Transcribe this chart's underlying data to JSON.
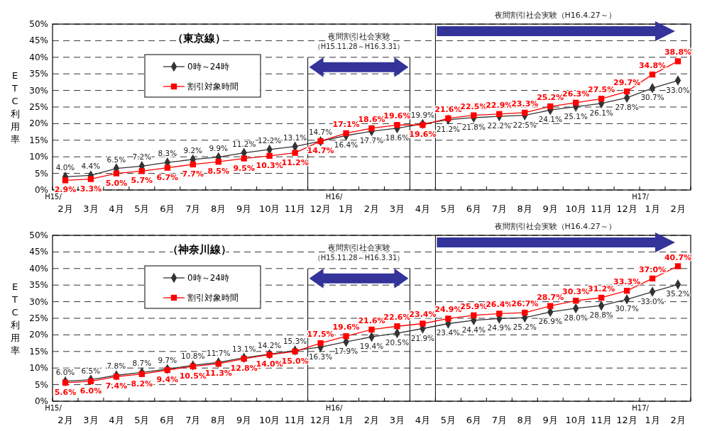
{
  "chart_data": [
    {
      "type": "line",
      "title": "（東京線）",
      "ylabel": "ETC利用率",
      "categories": [
        "H15/\n2月",
        "3月",
        "4月",
        "5月",
        "6月",
        "7月",
        "8月",
        "9月",
        "10月",
        "11月",
        "12月",
        "H16/\n1月",
        "2月",
        "3月",
        "4月",
        "5月",
        "6月",
        "7月",
        "8月",
        "9月",
        "10月",
        "11月",
        "12月",
        "H17/\n1月",
        "2月"
      ],
      "series": [
        {
          "name": "0時～24時",
          "color": "#333333",
          "marker": "diamond",
          "values": [
            4.0,
            4.4,
            6.5,
            7.2,
            8.3,
            9.2,
            9.9,
            11.2,
            12.2,
            13.1,
            14.7,
            16.4,
            17.7,
            18.6,
            19.9,
            21.2,
            21.8,
            22.2,
            22.5,
            24.1,
            25.1,
            26.1,
            27.8,
            30.7,
            33.0
          ],
          "value_labels": [
            "4.0%",
            "4.4%",
            "6.5%",
            "7.2%",
            "8.3%",
            "9.2%",
            "9.9%",
            "11.2%",
            "12.2%",
            "13.1%",
            "14.7%",
            "16.4%",
            "17.7%",
            "18.6%",
            "19.9%",
            "21.2%",
            "21.8%",
            "22.2%",
            "22.5%",
            "24.1%",
            "25.1%",
            "26.1%",
            "27.8%",
            "30.7%",
            "33.0%"
          ]
        },
        {
          "name": "割引対象時間",
          "color": "#ff0000",
          "marker": "square",
          "values": [
            2.9,
            3.3,
            5.0,
            5.7,
            6.7,
            7.7,
            8.5,
            9.5,
            10.3,
            11.2,
            14.7,
            17.1,
            18.6,
            19.6,
            19.6,
            21.6,
            22.5,
            22.9,
            23.3,
            25.2,
            26.3,
            27.5,
            29.7,
            34.8,
            38.8
          ],
          "value_labels": [
            "2.9%",
            "3.3%",
            "5.0%",
            "5.7%",
            "6.7%",
            "7.7%",
            "8.5%",
            "9.5%",
            "10.3%",
            "11.2%",
            "14.7%",
            "17.1%",
            "18.6%",
            "19.6%",
            "19.6%",
            "21.6%",
            "22.5%",
            "22.9%",
            "23.3%",
            "25.2%",
            "26.3%",
            "27.5%",
            "29.7%",
            "34.8%",
            "38.8%"
          ]
        }
      ],
      "ylim": [
        0,
        50
      ],
      "yticks": [
        {
          "value": 0,
          "label": "0%"
        },
        {
          "value": 5,
          "label": "5%"
        },
        {
          "value": 10,
          "label": "10%"
        },
        {
          "value": 15,
          "label": "15%"
        },
        {
          "value": 20,
          "label": "20%"
        },
        {
          "value": 25,
          "label": "25%"
        },
        {
          "value": 30,
          "label": "30%"
        },
        {
          "value": 35,
          "label": "35%"
        },
        {
          "value": 40,
          "label": "40%"
        },
        {
          "value": 45,
          "label": "45%"
        },
        {
          "value": 50,
          "label": "50%"
        }
      ],
      "grid": "y",
      "legend": "top left",
      "annotations": [
        "夜間割引社会実験",
        "（H15.11.28～H16.3.31）",
        "夜間割引社会実験（H16.4.27～）"
      ]
    },
    {
      "type": "line",
      "title": "（神奈川線）",
      "ylabel": "ETC利用率",
      "categories": [
        "H15/\n2月",
        "3月",
        "4月",
        "5月",
        "6月",
        "7月",
        "8月",
        "9月",
        "10月",
        "11月",
        "12月",
        "H16/\n1月",
        "2月",
        "3月",
        "4月",
        "5月",
        "6月",
        "7月",
        "8月",
        "9月",
        "10月",
        "11月",
        "12月",
        "H17/\n1月",
        "2月"
      ],
      "series": [
        {
          "name": "0時～24時",
          "color": "#333333",
          "marker": "diamond",
          "values": [
            6.0,
            6.5,
            7.8,
            8.7,
            9.7,
            10.8,
            11.7,
            13.1,
            14.2,
            15.3,
            16.3,
            17.9,
            19.4,
            20.5,
            21.9,
            23.4,
            24.4,
            24.9,
            25.2,
            26.9,
            28.0,
            28.8,
            30.7,
            33.0,
            35.2
          ],
          "value_labels": [
            "6.0%",
            "6.5%",
            "7.8%",
            "8.7%",
            "9.7%",
            "10.8%",
            "11.7%",
            "13.1%",
            "14.2%",
            "15.3%",
            "16.3%",
            "17.9%",
            "19.4%",
            "20.5%",
            "21.9%",
            "23.4%",
            "24.4%",
            "24.9%",
            "25.2%",
            "26.9%",
            "28.0%",
            "28.8%",
            "30.7%",
            "33.0%",
            "35.2%"
          ]
        },
        {
          "name": "割引対象時間",
          "color": "#ff0000",
          "marker": "square",
          "values": [
            5.6,
            6.0,
            7.4,
            8.2,
            9.4,
            10.5,
            11.3,
            12.8,
            14.0,
            15.0,
            17.5,
            19.6,
            21.6,
            22.6,
            23.4,
            24.9,
            25.9,
            26.4,
            26.7,
            28.7,
            30.3,
            31.2,
            33.3,
            37.0,
            40.7
          ],
          "value_labels": [
            "5.6%",
            "6.0%",
            "7.4%",
            "8.2%",
            "9.4%",
            "10.5%",
            "11.3%",
            "12.8%",
            "14.0%",
            "15.0%",
            "17.5%",
            "19.6%",
            "21.6%",
            "22.6%",
            "23.4%",
            "24.9%",
            "25.9%",
            "26.4%",
            "26.7%",
            "28.7%",
            "30.3%",
            "31.2%",
            "33.3%",
            "37.0%",
            "40.7%"
          ]
        }
      ],
      "ylim": [
        0,
        50
      ],
      "yticks": [
        {
          "value": 0,
          "label": "0%"
        },
        {
          "value": 5,
          "label": "5%"
        },
        {
          "value": 10,
          "label": "10%"
        },
        {
          "value": 15,
          "label": "15%"
        },
        {
          "value": 20,
          "label": "20%"
        },
        {
          "value": 25,
          "label": "25%"
        },
        {
          "value": 30,
          "label": "30%"
        },
        {
          "value": 35,
          "label": "35%"
        },
        {
          "value": 40,
          "label": "40%"
        },
        {
          "value": 45,
          "label": "45%"
        },
        {
          "value": 50,
          "label": "50%"
        }
      ],
      "grid": "y",
      "legend": "top left",
      "annotations": [
        "夜間割引社会実験",
        "（H15.11.28～H16.3.31）",
        "夜間割引社会実験（H16.4.27～）"
      ]
    }
  ]
}
